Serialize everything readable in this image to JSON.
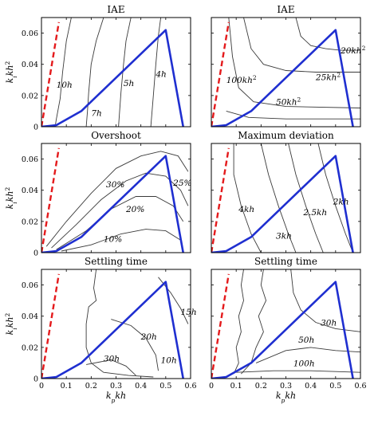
{
  "chart_data": [
    {
      "type": "line",
      "title": "IAE",
      "xlabel": "",
      "ylabel": "k_i kh^2",
      "xlim": [
        0,
        0.6
      ],
      "ylim": [
        0,
        0.07
      ],
      "xticks": [],
      "yticks": [
        "0",
        "0.02",
        "0.04",
        "0.06"
      ],
      "boundary": {
        "x": [
          0,
          0.06,
          0.16,
          0.5,
          0.57
        ],
        "y": [
          0,
          0.001,
          0.01,
          0.062,
          0
        ]
      },
      "dashed_line": {
        "x": [
          0,
          0.07
        ],
        "y": [
          0,
          0.067
        ]
      },
      "contour_labels": [
        {
          "text": "10h",
          "x": 0.06,
          "y": 0.025
        },
        {
          "text": "7h",
          "x": 0.2,
          "y": 0.007
        },
        {
          "text": "5h",
          "x": 0.33,
          "y": 0.026
        },
        {
          "text": "4h",
          "x": 0.46,
          "y": 0.032
        }
      ]
    },
    {
      "type": "line",
      "title": "IAE",
      "xlabel": "",
      "ylabel": "",
      "xlim": [
        0,
        0.6
      ],
      "ylim": [
        0,
        0.07
      ],
      "xticks": [],
      "yticks": [],
      "boundary": {
        "x": [
          0,
          0.06,
          0.16,
          0.5,
          0.57
        ],
        "y": [
          0,
          0.001,
          0.01,
          0.062,
          0
        ]
      },
      "dashed_line": {
        "x": [
          0,
          0.07
        ],
        "y": [
          0,
          0.067
        ]
      },
      "contour_labels": [
        {
          "text": "20kh^2",
          "x": 0.52,
          "y": 0.047
        },
        {
          "text": "25kh^2",
          "x": 0.42,
          "y": 0.03
        },
        {
          "text": "100kh^2",
          "x": 0.06,
          "y": 0.028
        },
        {
          "text": "50kh^2",
          "x": 0.26,
          "y": 0.014
        }
      ]
    },
    {
      "type": "line",
      "title": "Overshoot",
      "xlabel": "",
      "ylabel": "k_i kh^2",
      "xlim": [
        0,
        0.6
      ],
      "ylim": [
        0,
        0.07
      ],
      "xticks": [],
      "yticks": [
        "0",
        "0.02",
        "0.04",
        "0.06"
      ],
      "boundary": {
        "x": [
          0,
          0.06,
          0.16,
          0.5,
          0.57
        ],
        "y": [
          0,
          0.001,
          0.01,
          0.062,
          0
        ]
      },
      "dashed_line": {
        "x": [
          0,
          0.07
        ],
        "y": [
          0,
          0.067
        ]
      },
      "contour_labels": [
        {
          "text": "30%",
          "x": 0.26,
          "y": 0.042
        },
        {
          "text": "25%",
          "x": 0.53,
          "y": 0.043
        },
        {
          "text": "20%",
          "x": 0.34,
          "y": 0.026
        },
        {
          "text": "10%",
          "x": 0.25,
          "y": 0.007
        }
      ]
    },
    {
      "type": "line",
      "title": "Maximum deviation",
      "xlabel": "",
      "ylabel": "",
      "xlim": [
        0,
        0.6
      ],
      "ylim": [
        0,
        0.07
      ],
      "xticks": [],
      "yticks": [],
      "boundary": {
        "x": [
          0,
          0.06,
          0.16,
          0.5,
          0.57
        ],
        "y": [
          0,
          0.001,
          0.01,
          0.062,
          0
        ]
      },
      "dashed_line": {
        "x": [
          0,
          0.07
        ],
        "y": [
          0,
          0.067
        ]
      },
      "contour_labels": [
        {
          "text": "4kh",
          "x": 0.11,
          "y": 0.026
        },
        {
          "text": "2.5kh",
          "x": 0.37,
          "y": 0.024
        },
        {
          "text": "2kh",
          "x": 0.49,
          "y": 0.031
        },
        {
          "text": "3kh",
          "x": 0.26,
          "y": 0.009
        }
      ]
    },
    {
      "type": "line",
      "title": "Settling time",
      "xlabel": "k_p kh",
      "ylabel": "k_i kh^2",
      "xlim": [
        0,
        0.6
      ],
      "ylim": [
        0,
        0.07
      ],
      "xticks": [
        "0",
        "0.1",
        "0.2",
        "0.3",
        "0.4",
        "0.5",
        "0.6"
      ],
      "yticks": [
        "0",
        "0.02",
        "0.04",
        "0.06"
      ],
      "boundary": {
        "x": [
          0,
          0.06,
          0.16,
          0.5,
          0.57
        ],
        "y": [
          0,
          0.001,
          0.01,
          0.062,
          0
        ]
      },
      "dashed_line": {
        "x": [
          0,
          0.07
        ],
        "y": [
          0,
          0.067
        ]
      },
      "contour_labels": [
        {
          "text": "15h",
          "x": 0.56,
          "y": 0.041
        },
        {
          "text": "20h",
          "x": 0.4,
          "y": 0.025
        },
        {
          "text": "30h",
          "x": 0.25,
          "y": 0.011
        },
        {
          "text": "10h",
          "x": 0.48,
          "y": 0.01
        }
      ]
    },
    {
      "type": "line",
      "title": "Settling time",
      "xlabel": "k_p kh",
      "ylabel": "",
      "xlim": [
        0,
        0.6
      ],
      "ylim": [
        0,
        0.07
      ],
      "xticks": [
        "0",
        "0.1",
        "0.2",
        "0.3",
        "0.4",
        "0.5",
        "0.6"
      ],
      "yticks": [],
      "boundary": {
        "x": [
          0,
          0.06,
          0.16,
          0.5,
          0.57
        ],
        "y": [
          0,
          0.001,
          0.01,
          0.062,
          0
        ]
      },
      "dashed_line": {
        "x": [
          0,
          0.07
        ],
        "y": [
          0,
          0.067
        ]
      },
      "contour_labels": [
        {
          "text": "30h",
          "x": 0.44,
          "y": 0.034
        },
        {
          "text": "50h",
          "x": 0.35,
          "y": 0.023
        },
        {
          "text": "100h",
          "x": 0.33,
          "y": 0.008
        }
      ]
    }
  ]
}
